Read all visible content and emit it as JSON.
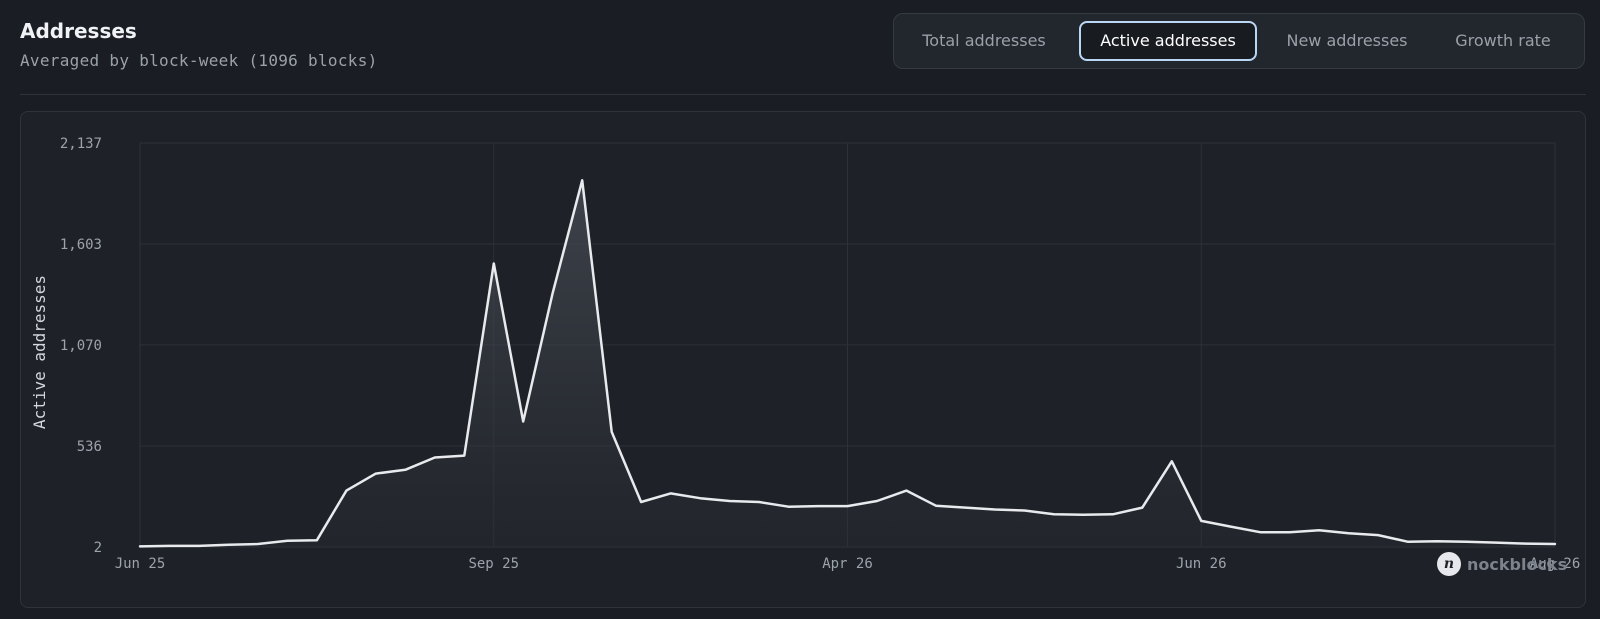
{
  "header": {
    "title": "Addresses",
    "subtitle": "Averaged by block-week (1096 blocks)"
  },
  "tabs": [
    {
      "label": "Total addresses",
      "active": false
    },
    {
      "label": "Active addresses",
      "active": true
    },
    {
      "label": "New addresses",
      "active": false
    },
    {
      "label": "Growth rate",
      "active": false
    }
  ],
  "watermark": {
    "text": "nockblocks",
    "logo_glyph": "n"
  },
  "colors": {
    "background": "#1a1d23",
    "panel": "#1e2127",
    "line": "#e8eaed",
    "grid": "#2d3138",
    "active_tab_border": "#b9d7f5"
  },
  "chart_data": {
    "type": "area",
    "title": "",
    "xlabel": "",
    "ylabel": "Active addresses",
    "ylim": [
      2,
      2137
    ],
    "y_ticks": [
      2,
      536,
      1070,
      1603,
      2137
    ],
    "y_tick_labels": [
      "2",
      "536",
      "1,070",
      "1,603",
      "2,137"
    ],
    "x_ticks": [
      0,
      12,
      24,
      36,
      48
    ],
    "x_tick_labels": [
      "Jun 25",
      "Sep 25",
      "Apr 26",
      "Jun 26",
      "Aug 26"
    ],
    "grid": true,
    "x": [
      0,
      1,
      2,
      3,
      4,
      5,
      6,
      7,
      8,
      9,
      10,
      11,
      12,
      13,
      14,
      15,
      16,
      17,
      18,
      19,
      20,
      21,
      22,
      23,
      24,
      25,
      26,
      27,
      28,
      29,
      30,
      31,
      32,
      33,
      34,
      35,
      36,
      37,
      38,
      39,
      40,
      41,
      42,
      43,
      44,
      45,
      46,
      47,
      48
    ],
    "series": [
      {
        "values": [
          5,
          8,
          8,
          14,
          18,
          35,
          38,
          300,
          390,
          410,
          475,
          485,
          1500,
          665,
          1345,
          1940,
          610,
          240,
          285,
          260,
          245,
          240,
          215,
          218,
          218,
          245,
          300,
          220,
          210,
          200,
          195,
          175,
          172,
          175,
          210,
          455,
          140,
          110,
          80,
          80,
          90,
          75,
          65,
          30,
          32,
          30,
          25,
          20,
          18
        ]
      }
    ]
  }
}
